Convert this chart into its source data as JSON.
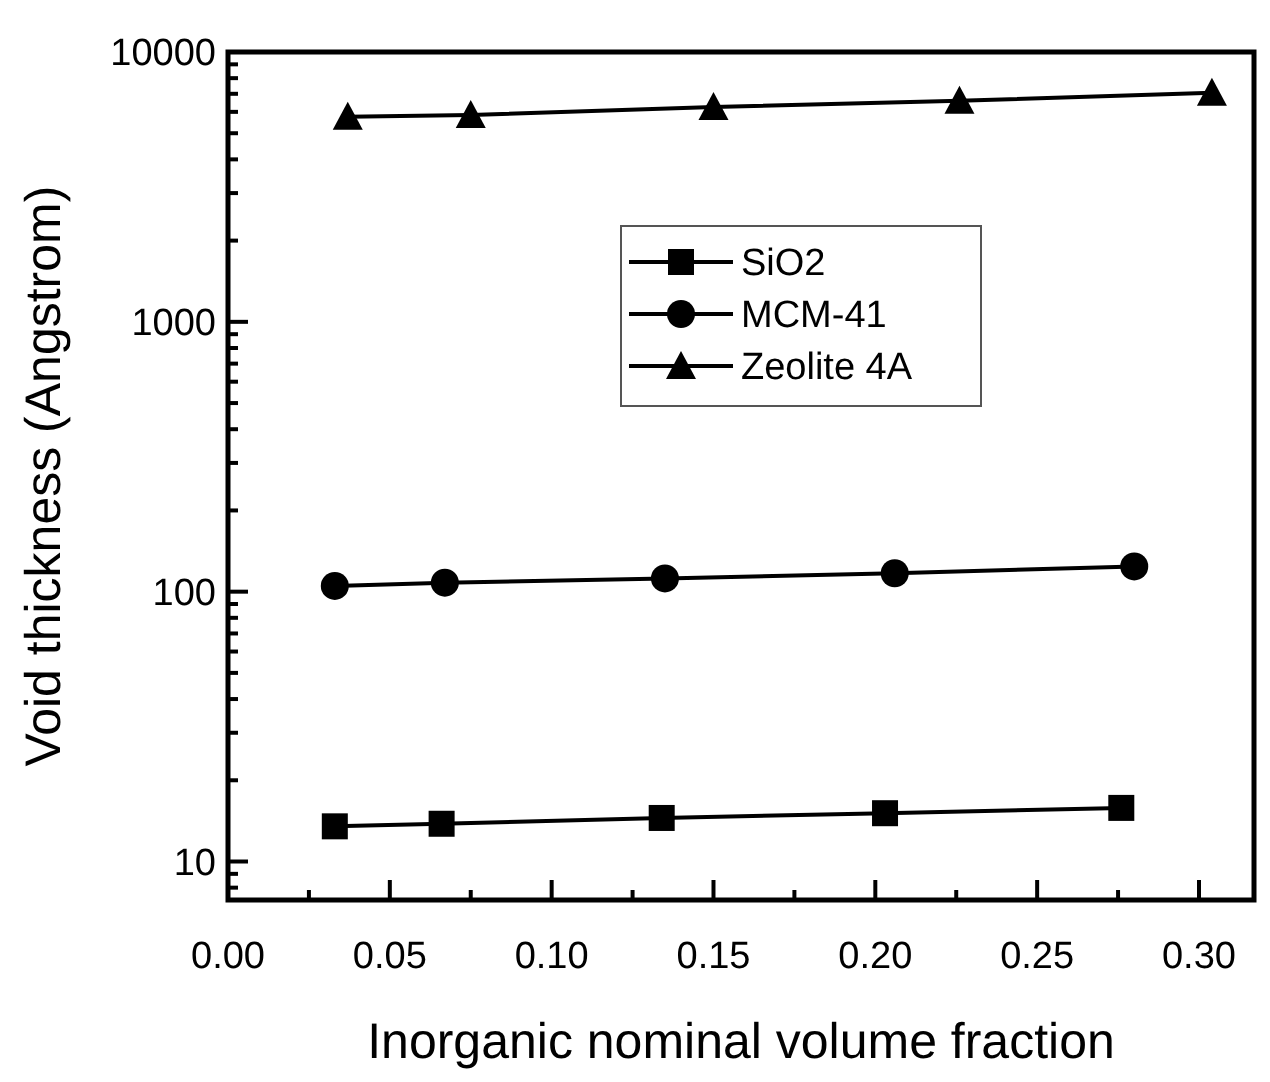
{
  "chart_data": {
    "type": "line",
    "xlabel": "Inorganic nominal volume fraction",
    "ylabel": "Void thickness (Angstrom)",
    "log": "y",
    "xlim": [
      0,
      0.317
    ],
    "ylim": [
      7.2,
      10000
    ],
    "xticks": [
      {
        "value": 0,
        "label": "0.00"
      },
      {
        "value": 0.025,
        "label": null
      },
      {
        "value": 0.05,
        "label": "0.05"
      },
      {
        "value": 0.075,
        "label": null
      },
      {
        "value": 0.1,
        "label": "0.10"
      },
      {
        "value": 0.125,
        "label": null
      },
      {
        "value": 0.15,
        "label": "0.15"
      },
      {
        "value": 0.175,
        "label": null
      },
      {
        "value": 0.2,
        "label": "0.20"
      },
      {
        "value": 0.225,
        "label": null
      },
      {
        "value": 0.25,
        "label": "0.25"
      },
      {
        "value": 0.275,
        "label": null
      },
      {
        "value": 0.3,
        "label": "0.30"
      }
    ],
    "yticks": [
      {
        "value": 8,
        "label": null
      },
      {
        "value": 9,
        "label": null
      },
      10,
      {
        "value": 20,
        "label": null
      },
      {
        "value": 30,
        "label": null
      },
      {
        "value": 40,
        "label": null
      },
      {
        "value": 50,
        "label": null
      },
      {
        "value": 60,
        "label": null
      },
      {
        "value": 70,
        "label": null
      },
      {
        "value": 80,
        "label": null
      },
      {
        "value": 90,
        "label": null
      },
      100,
      {
        "value": 200,
        "label": null
      },
      {
        "value": 300,
        "label": null
      },
      {
        "value": 400,
        "label": null
      },
      {
        "value": 500,
        "label": null
      },
      {
        "value": 600,
        "label": null
      },
      {
        "value": 700,
        "label": null
      },
      {
        "value": 800,
        "label": null
      },
      {
        "value": 900,
        "label": null
      },
      1000,
      {
        "value": 2000,
        "label": null
      },
      {
        "value": 3000,
        "label": null
      },
      {
        "value": 4000,
        "label": null
      },
      {
        "value": 5000,
        "label": null
      },
      {
        "value": 6000,
        "label": null
      },
      {
        "value": 7000,
        "label": null
      },
      {
        "value": 8000,
        "label": null
      },
      {
        "value": 9000,
        "label": null
      },
      10000
    ],
    "legend": "center",
    "grid": false,
    "line_style": "solid",
    "series": [
      {
        "name": "SiO2",
        "color": "#000000",
        "marker": "square",
        "x": [
          0.033,
          0.066,
          0.134,
          0.203,
          0.276
        ],
        "values": [
          13.5,
          13.8,
          14.5,
          15.1,
          15.8
        ]
      },
      {
        "name": "MCM-41",
        "color": "#000000",
        "marker": "circle",
        "x": [
          0.033,
          0.067,
          0.135,
          0.206,
          0.28
        ],
        "values": [
          105,
          108,
          112,
          117,
          124
        ]
      },
      {
        "name": "Zeolite 4A",
        "color": "#000000",
        "marker": "triangle",
        "x": [
          0.037,
          0.075,
          0.15,
          0.226,
          0.304
        ],
        "values": [
          5750,
          5840,
          6250,
          6590,
          7070
        ]
      }
    ]
  }
}
